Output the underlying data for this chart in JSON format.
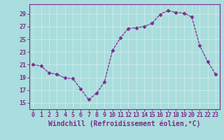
{
  "x": [
    0,
    1,
    2,
    3,
    4,
    5,
    6,
    7,
    8,
    9,
    10,
    11,
    12,
    13,
    14,
    15,
    16,
    17,
    18,
    19,
    20,
    21,
    22,
    23
  ],
  "y": [
    21.0,
    20.8,
    19.7,
    19.5,
    18.9,
    18.8,
    17.2,
    15.5,
    16.5,
    18.3,
    23.2,
    25.2,
    26.7,
    26.8,
    27.0,
    27.5,
    28.9,
    29.5,
    29.2,
    29.1,
    28.5,
    24.0,
    21.5,
    19.5
  ],
  "line_color": "#7b2d8b",
  "marker": "D",
  "marker_size": 2.5,
  "bg_color": "#aadddd",
  "grid_color": "#c8eaea",
  "xlabel": "Windchill (Refroidissement éolien,°C)",
  "xlim": [
    -0.5,
    23.5
  ],
  "ylim": [
    14.0,
    30.5
  ],
  "yticks": [
    15,
    17,
    19,
    21,
    23,
    25,
    27,
    29
  ],
  "xticks": [
    0,
    1,
    2,
    3,
    4,
    5,
    6,
    7,
    8,
    9,
    10,
    11,
    12,
    13,
    14,
    15,
    16,
    17,
    18,
    19,
    20,
    21,
    22,
    23
  ],
  "tick_color": "#7b2d8b",
  "label_color": "#7b2d8b",
  "spine_color": "#7b2d8b",
  "font_size": 6,
  "xlabel_fontsize": 7
}
